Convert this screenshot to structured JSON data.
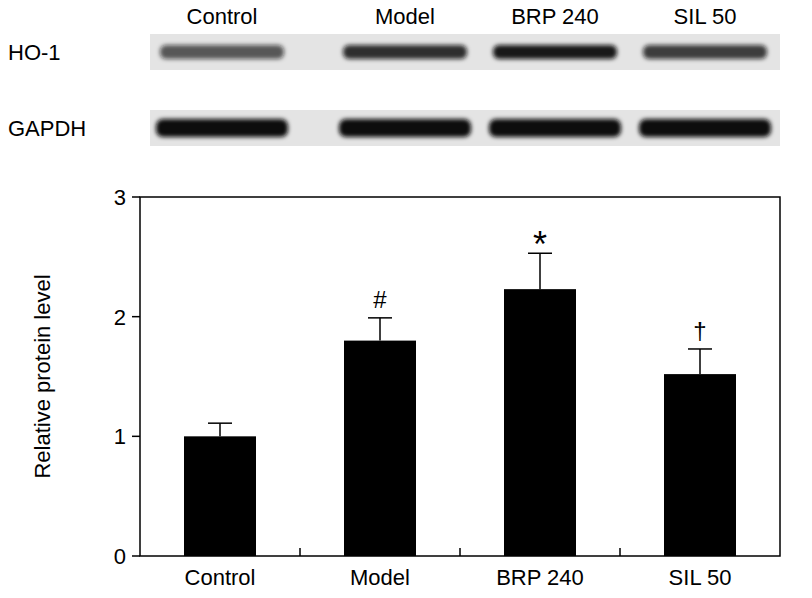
{
  "chart_data": {
    "type": "bar",
    "categories": [
      "Control",
      "Model",
      "BRP 240",
      "SIL 50"
    ],
    "values": [
      1.0,
      1.8,
      2.23,
      1.52
    ],
    "errors": [
      0.11,
      0.19,
      0.3,
      0.21
    ],
    "annotations": [
      null,
      "#",
      "*",
      "†"
    ],
    "blot_labels": [
      "HO-1",
      "GAPDH"
    ],
    "y_label": "Relative protein level",
    "color": "#000000",
    "ylim": [
      0,
      3
    ],
    "yticks": [
      0,
      1,
      2,
      3
    ],
    "grid": false
  }
}
